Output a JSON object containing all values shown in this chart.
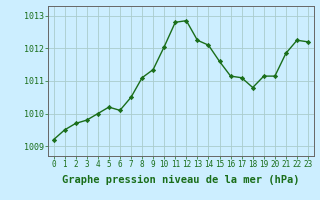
{
  "x": [
    0,
    1,
    2,
    3,
    4,
    5,
    6,
    7,
    8,
    9,
    10,
    11,
    12,
    13,
    14,
    15,
    16,
    17,
    18,
    19,
    20,
    21,
    22,
    23
  ],
  "y": [
    1009.2,
    1009.5,
    1009.7,
    1009.8,
    1010.0,
    1010.2,
    1010.1,
    1010.5,
    1011.1,
    1011.35,
    1012.05,
    1012.8,
    1012.85,
    1012.25,
    1012.1,
    1011.6,
    1011.15,
    1011.1,
    1010.8,
    1011.15,
    1011.15,
    1011.85,
    1012.25,
    1012.2
  ],
  "line_color": "#1a6e1a",
  "marker": "D",
  "marker_size": 2.2,
  "line_width": 1.0,
  "bg_color": "#cceeff",
  "grid_color": "#aacccc",
  "xlabel": "Graphe pression niveau de la mer (hPa)",
  "xlabel_fontsize": 7.5,
  "xlabel_bold": true,
  "ylim": [
    1008.7,
    1013.3
  ],
  "xlim": [
    -0.5,
    23.5
  ],
  "yticks": [
    1009,
    1010,
    1011,
    1012,
    1013
  ],
  "xticks": [
    0,
    1,
    2,
    3,
    4,
    5,
    6,
    7,
    8,
    9,
    10,
    11,
    12,
    13,
    14,
    15,
    16,
    17,
    18,
    19,
    20,
    21,
    22,
    23
  ],
  "tick_fontsize": 5.5,
  "ytick_fontsize": 6.0,
  "spine_color": "#666666"
}
